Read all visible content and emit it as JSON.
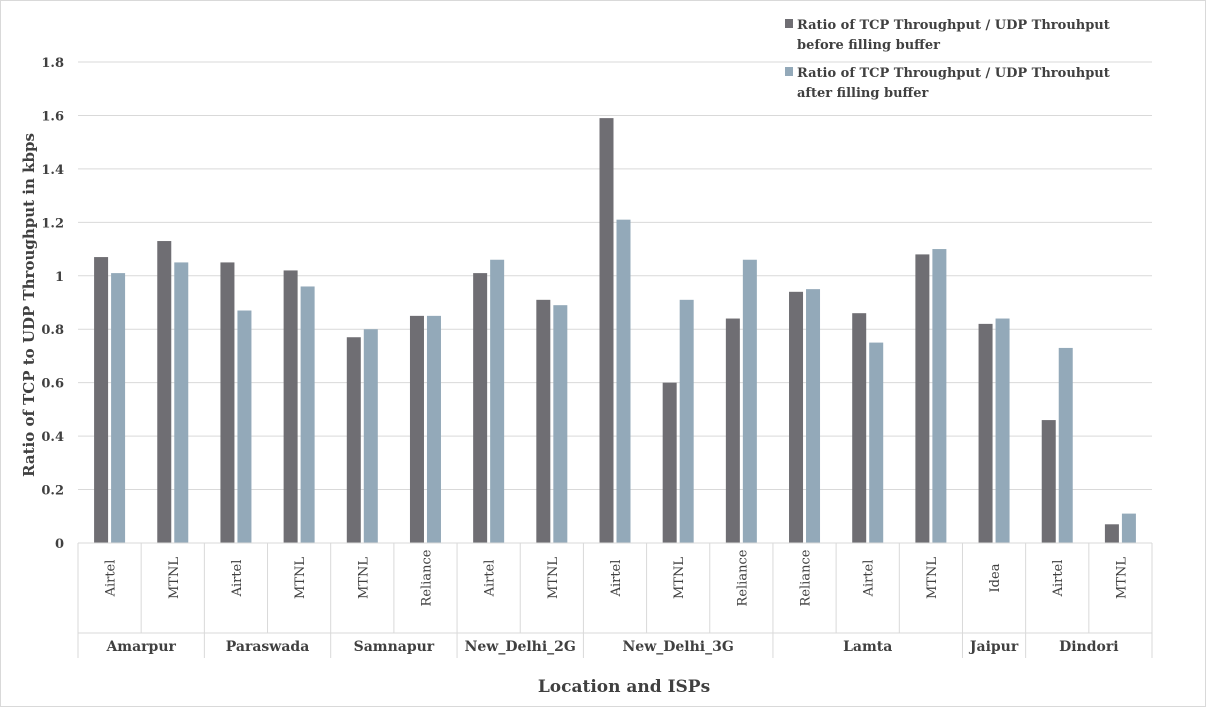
{
  "chart_data": {
    "type": "bar",
    "xlabel": "Location and ISPs",
    "ylabel": "Ratio of TCP to UDP Throughput in kbps",
    "ylim": [
      0,
      1.8
    ],
    "yticks": [
      "0",
      "0.2",
      "0.4",
      "0.6",
      "0.8",
      "1",
      "1.2",
      "1.4",
      "1.6",
      "1.8"
    ],
    "grid": true,
    "legend_position": "top-right",
    "colors": [
      "#6f6e73",
      "#93a9b9"
    ],
    "groups": [
      {
        "location": "Amarpur",
        "isps": [
          "Airtel",
          "MTNL"
        ]
      },
      {
        "location": "Paraswada",
        "isps": [
          "Airtel",
          "MTNL"
        ]
      },
      {
        "location": "Samnapur",
        "isps": [
          "MTNL",
          "Reliance"
        ]
      },
      {
        "location": "New_Delhi_2G",
        "isps": [
          "Airtel",
          "MTNL"
        ]
      },
      {
        "location": "New_Delhi_3G",
        "isps": [
          "Airtel",
          "MTNL",
          "Reliance"
        ]
      },
      {
        "location": "Lamta",
        "isps": [
          "Reliance",
          "Airtel",
          "MTNL"
        ]
      },
      {
        "location": "Jaipur",
        "isps": [
          "Idea"
        ]
      },
      {
        "location": "Dindori",
        "isps": [
          "Airtel",
          "MTNL"
        ]
      }
    ],
    "series": [
      {
        "name": "Ratio of TCP Throughput / UDP Throuhput before filling buffer",
        "legend_lines": [
          "Ratio of TCP Throughput / UDP Throuhput",
          "before filling buffer"
        ],
        "values": [
          1.07,
          1.13,
          1.05,
          1.02,
          0.77,
          0.85,
          1.01,
          0.91,
          1.59,
          0.6,
          0.84,
          0.94,
          0.86,
          1.08,
          0.82,
          0.46,
          0.07
        ]
      },
      {
        "name": "Ratio of TCP Throughput / UDP Throuhput after filling buffer",
        "legend_lines": [
          "Ratio of TCP Throughput / UDP Throuhput",
          "after filling buffer"
        ],
        "values": [
          1.01,
          1.05,
          0.87,
          0.96,
          0.8,
          0.85,
          1.06,
          0.89,
          1.21,
          0.91,
          1.06,
          0.95,
          0.75,
          1.1,
          0.84,
          0.73,
          0.11
        ]
      }
    ]
  }
}
